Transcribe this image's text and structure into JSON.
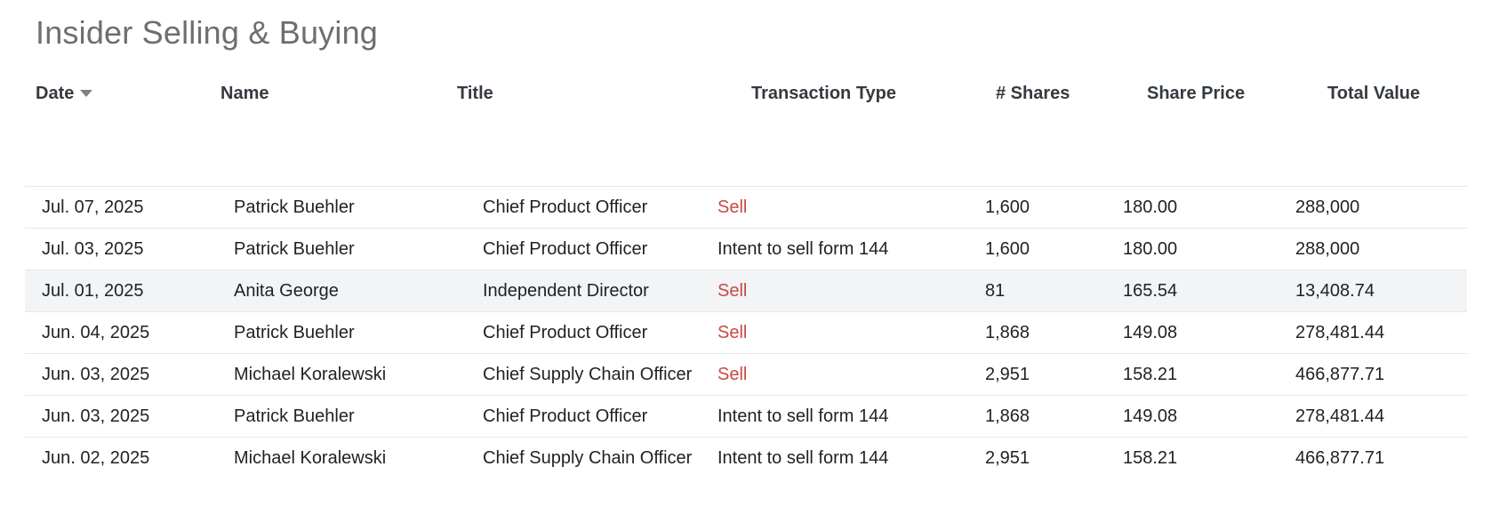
{
  "page": {
    "title": "Insider Selling & Buying"
  },
  "table": {
    "columns": [
      {
        "key": "date",
        "label": "Date",
        "sorted": "desc"
      },
      {
        "key": "name",
        "label": "Name"
      },
      {
        "key": "title",
        "label": "Title"
      },
      {
        "key": "transaction_type",
        "label": "Transaction Type"
      },
      {
        "key": "shares",
        "label": "# Shares"
      },
      {
        "key": "share_price",
        "label": "Share Price"
      },
      {
        "key": "total_value",
        "label": "Total Value"
      }
    ],
    "rows": [
      {
        "date": "Jul. 07, 2025",
        "name": "Patrick Buehler",
        "title": "Chief Product Officer",
        "transaction_type": "Sell",
        "transaction_is_sell": true,
        "shares": "1,600",
        "share_price": "180.00",
        "total_value": "288,000",
        "highlighted": false
      },
      {
        "date": "Jul. 03, 2025",
        "name": "Patrick Buehler",
        "title": "Chief Product Officer",
        "transaction_type": "Intent to sell form 144",
        "transaction_is_sell": false,
        "shares": "1,600",
        "share_price": "180.00",
        "total_value": "288,000",
        "highlighted": false
      },
      {
        "date": "Jul. 01, 2025",
        "name": "Anita George",
        "title": "Independent Director",
        "transaction_type": "Sell",
        "transaction_is_sell": true,
        "shares": "81",
        "share_price": "165.54",
        "total_value": "13,408.74",
        "highlighted": true
      },
      {
        "date": "Jun. 04, 2025",
        "name": "Patrick Buehler",
        "title": "Chief Product Officer",
        "transaction_type": "Sell",
        "transaction_is_sell": true,
        "shares": "1,868",
        "share_price": "149.08",
        "total_value": "278,481.44",
        "highlighted": false
      },
      {
        "date": "Jun. 03, 2025",
        "name": "Michael Koralewski",
        "title": "Chief Supply Chain Officer",
        "transaction_type": "Sell",
        "transaction_is_sell": true,
        "shares": "2,951",
        "share_price": "158.21",
        "total_value": "466,877.71",
        "highlighted": false
      },
      {
        "date": "Jun. 03, 2025",
        "name": "Patrick Buehler",
        "title": "Chief Product Officer",
        "transaction_type": "Intent to sell form 144",
        "transaction_is_sell": false,
        "shares": "1,868",
        "share_price": "149.08",
        "total_value": "278,481.44",
        "highlighted": false
      },
      {
        "date": "Jun. 02, 2025",
        "name": "Michael Koralewski",
        "title": "Chief Supply Chain Officer",
        "transaction_type": "Intent to sell form 144",
        "transaction_is_sell": false,
        "shares": "2,951",
        "share_price": "158.21",
        "total_value": "466,877.71",
        "highlighted": false
      }
    ]
  },
  "icons": {
    "sort_desc_icon": "caret-down"
  },
  "colors": {
    "sell_red": "#c84a42",
    "title_gray": "#6d6e71",
    "header_text": "#343a40",
    "body_text": "#1f2124",
    "row_border": "#e6e7e8",
    "highlight_bg": "#f2f4f6"
  }
}
